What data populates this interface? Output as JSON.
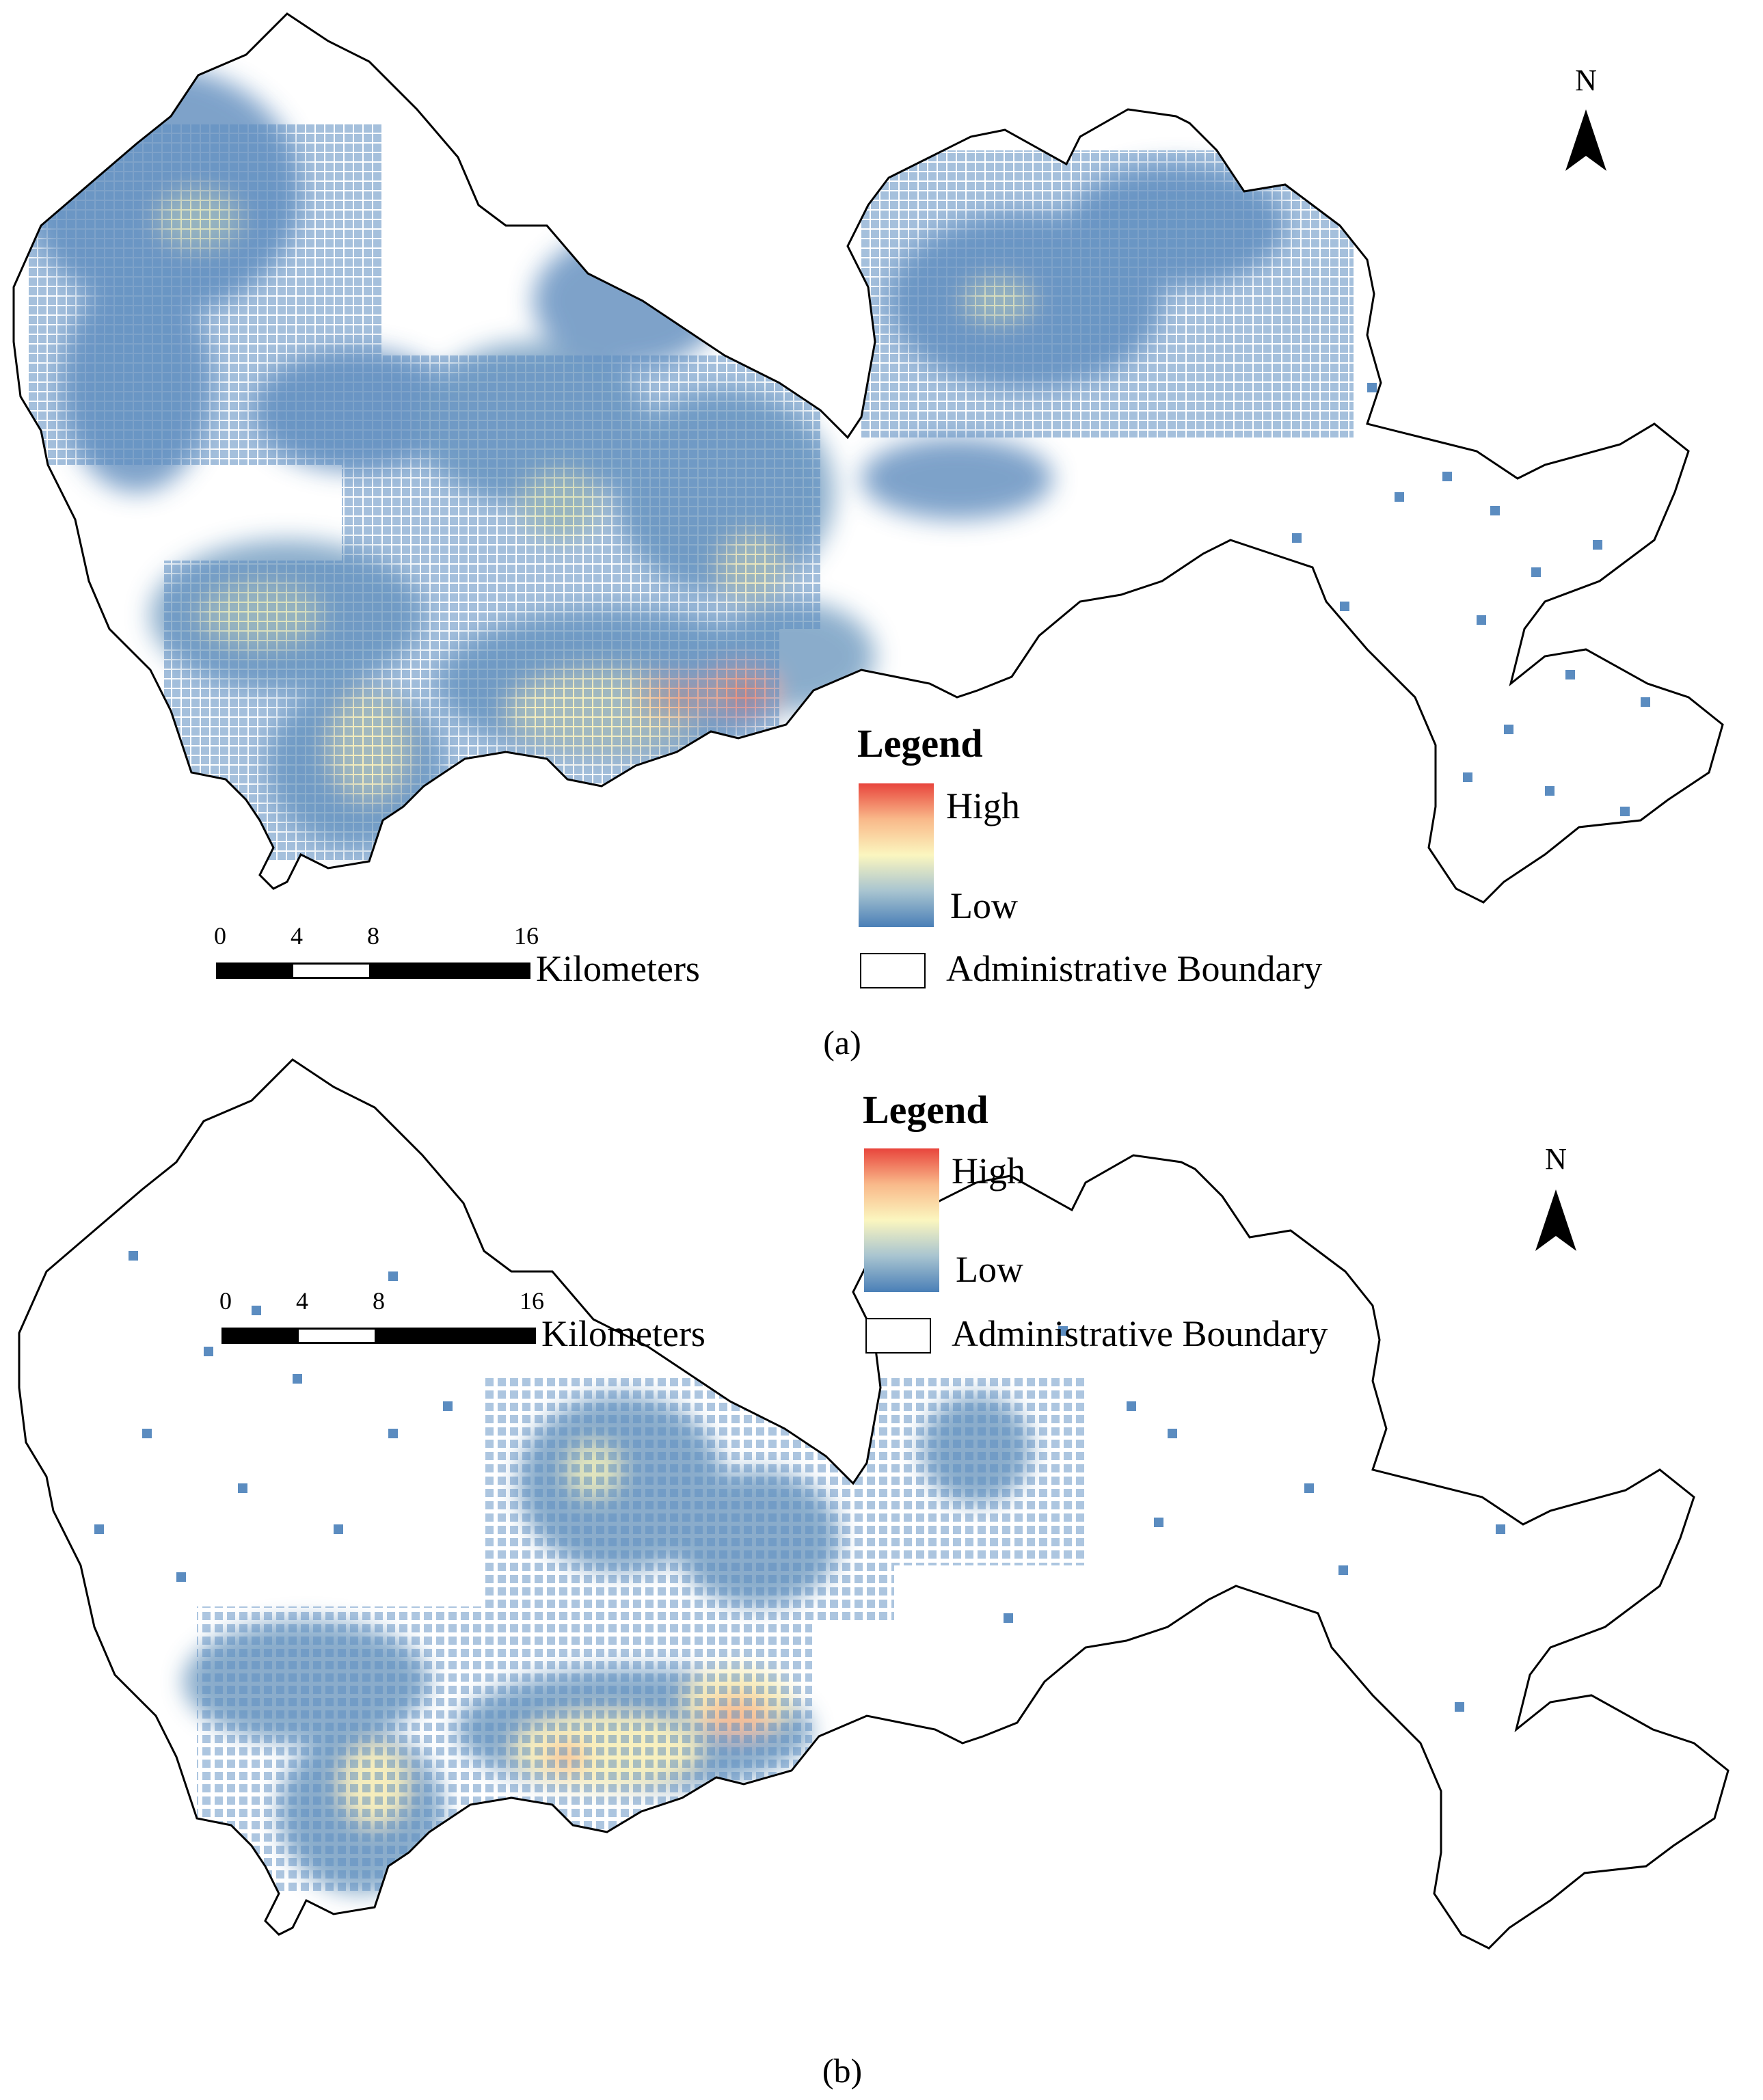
{
  "figure": {
    "panels": [
      {
        "id": "a",
        "caption": "(a)",
        "north_label": "N",
        "legend": {
          "title": "Legend",
          "high_label": "High",
          "low_label": "Low",
          "boundary_label": "Administrative Boundary"
        },
        "scale": {
          "ticks": [
            "0",
            "4",
            "8",
            "16"
          ],
          "unit": "Kilometers"
        },
        "hotspots": "dense"
      },
      {
        "id": "b",
        "caption": "(b)",
        "north_label": "N",
        "legend": {
          "title": "Legend",
          "high_label": "High",
          "low_label": "Low",
          "boundary_label": "Administrative Boundary"
        },
        "scale": {
          "ticks": [
            "0",
            "4",
            "8",
            "16"
          ],
          "unit": "Kilometers"
        },
        "hotspots": "sparse"
      }
    ],
    "colors": {
      "high": "#e8453c",
      "mid_high": "#f9b98a",
      "mid": "#fbf6bf",
      "mid_low": "#a8c4d0",
      "low": "#4a7fb7",
      "boundary": "#000000"
    }
  }
}
